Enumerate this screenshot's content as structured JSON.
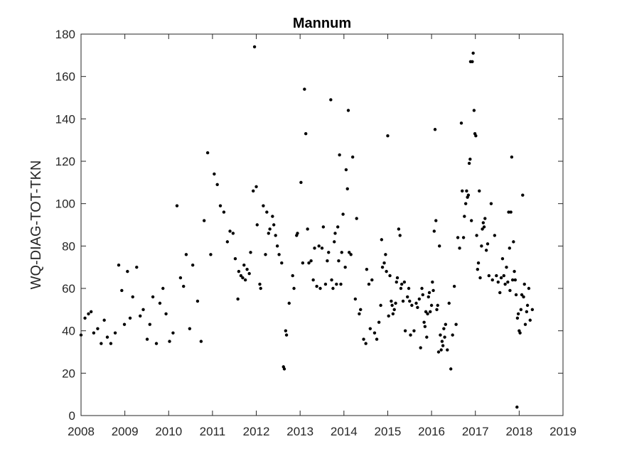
{
  "chart_data": {
    "type": "scatter",
    "title": "Mannum",
    "xlabel": "",
    "ylabel": "WQ-DIAG-TOT-TKN",
    "xlim": [
      2008,
      2019
    ],
    "ylim": [
      0,
      180
    ],
    "xticks": [
      2008,
      2009,
      2010,
      2011,
      2012,
      2013,
      2014,
      2015,
      2016,
      2017,
      2018,
      2019
    ],
    "yticks": [
      0,
      20,
      40,
      60,
      80,
      100,
      120,
      140,
      160,
      180
    ],
    "grid": false,
    "marker_color": "#000000",
    "series": [
      {
        "points": [
          [
            2008.0,
            38
          ],
          [
            2008.09,
            46
          ],
          [
            2008.17,
            48
          ],
          [
            2008.23,
            49
          ],
          [
            2008.29,
            39
          ],
          [
            2008.38,
            41
          ],
          [
            2008.46,
            34
          ],
          [
            2008.53,
            45
          ],
          [
            2008.6,
            37
          ],
          [
            2008.68,
            34
          ],
          [
            2008.78,
            39
          ],
          [
            2008.86,
            71
          ],
          [
            2008.93,
            59
          ],
          [
            2008.99,
            43
          ],
          [
            2009.06,
            68
          ],
          [
            2009.12,
            46
          ],
          [
            2009.18,
            56
          ],
          [
            2009.27,
            70
          ],
          [
            2009.35,
            47
          ],
          [
            2009.42,
            50
          ],
          [
            2009.51,
            36
          ],
          [
            2009.57,
            43
          ],
          [
            2009.64,
            56
          ],
          [
            2009.72,
            34
          ],
          [
            2009.8,
            53
          ],
          [
            2009.87,
            60
          ],
          [
            2009.94,
            48
          ],
          [
            2010.02,
            35
          ],
          [
            2010.1,
            39
          ],
          [
            2010.19,
            99
          ],
          [
            2010.27,
            65
          ],
          [
            2010.34,
            61
          ],
          [
            2010.4,
            76
          ],
          [
            2010.48,
            41
          ],
          [
            2010.55,
            71
          ],
          [
            2010.66,
            54
          ],
          [
            2010.74,
            35
          ],
          [
            2010.81,
            92
          ],
          [
            2010.89,
            124
          ],
          [
            2010.96,
            76
          ],
          [
            2011.04,
            114
          ],
          [
            2011.11,
            109
          ],
          [
            2011.18,
            99
          ],
          [
            2011.26,
            96
          ],
          [
            2011.34,
            82
          ],
          [
            2011.4,
            87
          ],
          [
            2011.47,
            86
          ],
          [
            2011.52,
            74
          ],
          [
            2011.58,
            55
          ],
          [
            2011.6,
            68
          ],
          [
            2011.65,
            66
          ],
          [
            2011.69,
            65
          ],
          [
            2011.72,
            71
          ],
          [
            2011.75,
            64
          ],
          [
            2011.79,
            69
          ],
          [
            2011.84,
            67
          ],
          [
            2011.87,
            77
          ],
          [
            2011.93,
            106
          ],
          [
            2011.96,
            174
          ],
          [
            2012.0,
            108
          ],
          [
            2012.02,
            90
          ],
          [
            2012.08,
            62
          ],
          [
            2012.1,
            60
          ],
          [
            2012.16,
            99
          ],
          [
            2012.21,
            76
          ],
          [
            2012.24,
            96
          ],
          [
            2012.28,
            86
          ],
          [
            2012.31,
            88
          ],
          [
            2012.37,
            94
          ],
          [
            2012.4,
            90
          ],
          [
            2012.44,
            85
          ],
          [
            2012.48,
            80
          ],
          [
            2012.52,
            76
          ],
          [
            2012.58,
            72
          ],
          [
            2012.62,
            23
          ],
          [
            2012.64,
            22
          ],
          [
            2012.67,
            40
          ],
          [
            2012.69,
            38
          ],
          [
            2012.75,
            53
          ],
          [
            2012.83,
            66
          ],
          [
            2012.86,
            60
          ],
          [
            2012.92,
            85
          ],
          [
            2012.94,
            86
          ],
          [
            2013.02,
            110
          ],
          [
            2013.06,
            72
          ],
          [
            2013.1,
            154
          ],
          [
            2013.13,
            133
          ],
          [
            2013.17,
            88
          ],
          [
            2013.2,
            72
          ],
          [
            2013.25,
            73
          ],
          [
            2013.3,
            64
          ],
          [
            2013.33,
            79
          ],
          [
            2013.38,
            61
          ],
          [
            2013.43,
            80
          ],
          [
            2013.46,
            60
          ],
          [
            2013.5,
            79
          ],
          [
            2013.53,
            89
          ],
          [
            2013.58,
            62
          ],
          [
            2013.62,
            73
          ],
          [
            2013.65,
            77
          ],
          [
            2013.7,
            149
          ],
          [
            2013.72,
            64
          ],
          [
            2013.75,
            60
          ],
          [
            2013.78,
            82
          ],
          [
            2013.8,
            86
          ],
          [
            2013.83,
            62
          ],
          [
            2013.86,
            89
          ],
          [
            2013.88,
            73
          ],
          [
            2013.9,
            123
          ],
          [
            2013.93,
            62
          ],
          [
            2013.95,
            77
          ],
          [
            2013.98,
            95
          ],
          [
            2014.03,
            70
          ],
          [
            2014.05,
            116
          ],
          [
            2014.08,
            107
          ],
          [
            2014.1,
            144
          ],
          [
            2014.12,
            77
          ],
          [
            2014.16,
            76
          ],
          [
            2014.2,
            122
          ],
          [
            2014.26,
            55
          ],
          [
            2014.29,
            93
          ],
          [
            2014.35,
            48
          ],
          [
            2014.38,
            50
          ],
          [
            2014.45,
            36
          ],
          [
            2014.5,
            34
          ],
          [
            2014.52,
            69
          ],
          [
            2014.57,
            62
          ],
          [
            2014.6,
            41
          ],
          [
            2014.64,
            64
          ],
          [
            2014.7,
            39
          ],
          [
            2014.75,
            36
          ],
          [
            2014.8,
            44
          ],
          [
            2014.84,
            52
          ],
          [
            2014.86,
            83
          ],
          [
            2014.88,
            70
          ],
          [
            2014.92,
            72
          ],
          [
            2014.95,
            76
          ],
          [
            2014.97,
            68
          ],
          [
            2015.0,
            132
          ],
          [
            2015.02,
            47
          ],
          [
            2015.05,
            66
          ],
          [
            2015.08,
            54
          ],
          [
            2015.1,
            52
          ],
          [
            2015.12,
            48
          ],
          [
            2015.15,
            50
          ],
          [
            2015.18,
            53
          ],
          [
            2015.2,
            63
          ],
          [
            2015.22,
            65
          ],
          [
            2015.25,
            88
          ],
          [
            2015.28,
            85
          ],
          [
            2015.3,
            60
          ],
          [
            2015.32,
            62
          ],
          [
            2015.35,
            54
          ],
          [
            2015.38,
            63
          ],
          [
            2015.4,
            40
          ],
          [
            2015.45,
            56
          ],
          [
            2015.48,
            60
          ],
          [
            2015.5,
            54
          ],
          [
            2015.52,
            38
          ],
          [
            2015.55,
            52
          ],
          [
            2015.6,
            40
          ],
          [
            2015.65,
            53
          ],
          [
            2015.68,
            51
          ],
          [
            2015.72,
            55
          ],
          [
            2015.75,
            32
          ],
          [
            2015.78,
            60
          ],
          [
            2015.8,
            57
          ],
          [
            2015.83,
            44
          ],
          [
            2015.85,
            42
          ],
          [
            2015.87,
            49
          ],
          [
            2015.89,
            37
          ],
          [
            2015.91,
            48
          ],
          [
            2015.93,
            56
          ],
          [
            2015.95,
            58
          ],
          [
            2015.97,
            49
          ],
          [
            2016.0,
            52
          ],
          [
            2016.02,
            63
          ],
          [
            2016.04,
            59
          ],
          [
            2016.06,
            87
          ],
          [
            2016.08,
            135
          ],
          [
            2016.1,
            92
          ],
          [
            2016.12,
            50
          ],
          [
            2016.14,
            52
          ],
          [
            2016.16,
            30
          ],
          [
            2016.18,
            80
          ],
          [
            2016.2,
            38
          ],
          [
            2016.22,
            31
          ],
          [
            2016.24,
            35
          ],
          [
            2016.26,
            33
          ],
          [
            2016.28,
            41
          ],
          [
            2016.3,
            37
          ],
          [
            2016.32,
            43
          ],
          [
            2016.36,
            31
          ],
          [
            2016.4,
            53
          ],
          [
            2016.44,
            22
          ],
          [
            2016.48,
            38
          ],
          [
            2016.52,
            61
          ],
          [
            2016.56,
            43
          ],
          [
            2016.6,
            84
          ],
          [
            2016.64,
            79
          ],
          [
            2016.68,
            138
          ],
          [
            2016.7,
            106
          ],
          [
            2016.73,
            84
          ],
          [
            2016.75,
            94
          ],
          [
            2016.78,
            100
          ],
          [
            2016.8,
            106
          ],
          [
            2016.82,
            103
          ],
          [
            2016.84,
            104
          ],
          [
            2016.86,
            119
          ],
          [
            2016.88,
            121
          ],
          [
            2016.89,
            167
          ],
          [
            2016.91,
            92
          ],
          [
            2016.93,
            167
          ],
          [
            2016.95,
            171
          ],
          [
            2016.97,
            144
          ],
          [
            2016.99,
            133
          ],
          [
            2017.01,
            132
          ],
          [
            2017.03,
            85
          ],
          [
            2017.05,
            69
          ],
          [
            2017.07,
            72
          ],
          [
            2017.09,
            106
          ],
          [
            2017.11,
            65
          ],
          [
            2017.14,
            80
          ],
          [
            2017.16,
            88
          ],
          [
            2017.18,
            91
          ],
          [
            2017.2,
            89
          ],
          [
            2017.22,
            93
          ],
          [
            2017.25,
            78
          ],
          [
            2017.28,
            81
          ],
          [
            2017.31,
            66
          ],
          [
            2017.36,
            100
          ],
          [
            2017.39,
            64
          ],
          [
            2017.44,
            85
          ],
          [
            2017.48,
            66
          ],
          [
            2017.52,
            63
          ],
          [
            2017.56,
            58
          ],
          [
            2017.59,
            65
          ],
          [
            2017.62,
            74
          ],
          [
            2017.65,
            66
          ],
          [
            2017.68,
            62
          ],
          [
            2017.71,
            70
          ],
          [
            2017.74,
            63
          ],
          [
            2017.76,
            96
          ],
          [
            2017.78,
            79
          ],
          [
            2017.79,
            59
          ],
          [
            2017.81,
            96
          ],
          [
            2017.83,
            122
          ],
          [
            2017.85,
            64
          ],
          [
            2017.87,
            82
          ],
          [
            2017.89,
            68
          ],
          [
            2017.91,
            64
          ],
          [
            2017.93,
            57
          ],
          [
            2017.95,
            4
          ],
          [
            2017.96,
            46
          ],
          [
            2017.98,
            48
          ],
          [
            2018.0,
            40
          ],
          [
            2018.02,
            39
          ],
          [
            2018.04,
            50
          ],
          [
            2018.06,
            57
          ],
          [
            2018.08,
            104
          ],
          [
            2018.1,
            56
          ],
          [
            2018.12,
            62
          ],
          [
            2018.14,
            43
          ],
          [
            2018.17,
            49
          ],
          [
            2018.19,
            52
          ],
          [
            2018.22,
            60
          ],
          [
            2018.25,
            45
          ],
          [
            2018.3,
            50
          ]
        ]
      }
    ]
  }
}
